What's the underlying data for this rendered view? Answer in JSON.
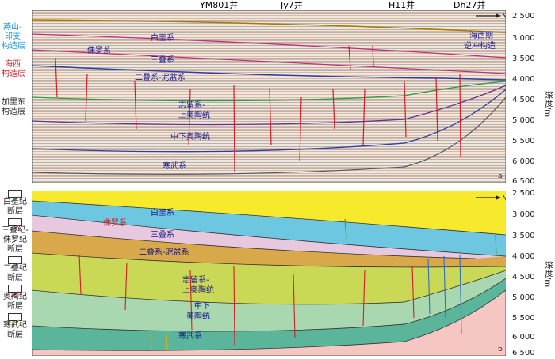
{
  "wells": [
    "YM801井",
    "Jy7井",
    "H11井",
    "Dh27井"
  ],
  "north_label": "N",
  "panel_a": {
    "tag": "a",
    "left_labels": {
      "yanshan": [
        "燕山-",
        "印支",
        "构造层"
      ],
      "haixi": [
        "海西",
        "构造层"
      ],
      "jialidong": [
        "加里东",
        "构造层"
      ]
    },
    "strata": [
      "白垩系",
      "侏罗系",
      "三叠系",
      "二叠系-泥盆系",
      "志留系-",
      "上奥陶统",
      "中下奥陶统",
      "寒武系"
    ],
    "annotation": [
      "海西期",
      "逆冲构造"
    ]
  },
  "panel_b": {
    "tag": "b",
    "strata": [
      "白垩系",
      "侏罗系",
      "三叠系",
      "二叠系-泥盆系",
      "志留系-",
      "上奥陶统",
      "中下",
      "奥陶统",
      "寒武系"
    ]
  },
  "depth_axis": {
    "label": "深度/m",
    "ticks": [
      "2 500",
      "3 000",
      "3 500",
      "4 000",
      "4 500",
      "5 000",
      "5 500",
      "6 000",
      "6 500"
    ]
  },
  "legend": [
    {
      "label": [
        "白垩纪",
        "断层"
      ],
      "color": "#2e9e3e"
    },
    {
      "label": [
        "三叠纪-",
        "侏罗纪",
        "断层"
      ],
      "color": "#c0307a"
    },
    {
      "label": [
        "二叠纪",
        "断层"
      ],
      "color": "#2f6fc0"
    },
    {
      "label": [
        "奥陶纪",
        "断层"
      ],
      "color": "#d21e2a"
    },
    {
      "label": [
        "寒武纪",
        "断层"
      ],
      "color": "#e0b21a"
    }
  ]
}
